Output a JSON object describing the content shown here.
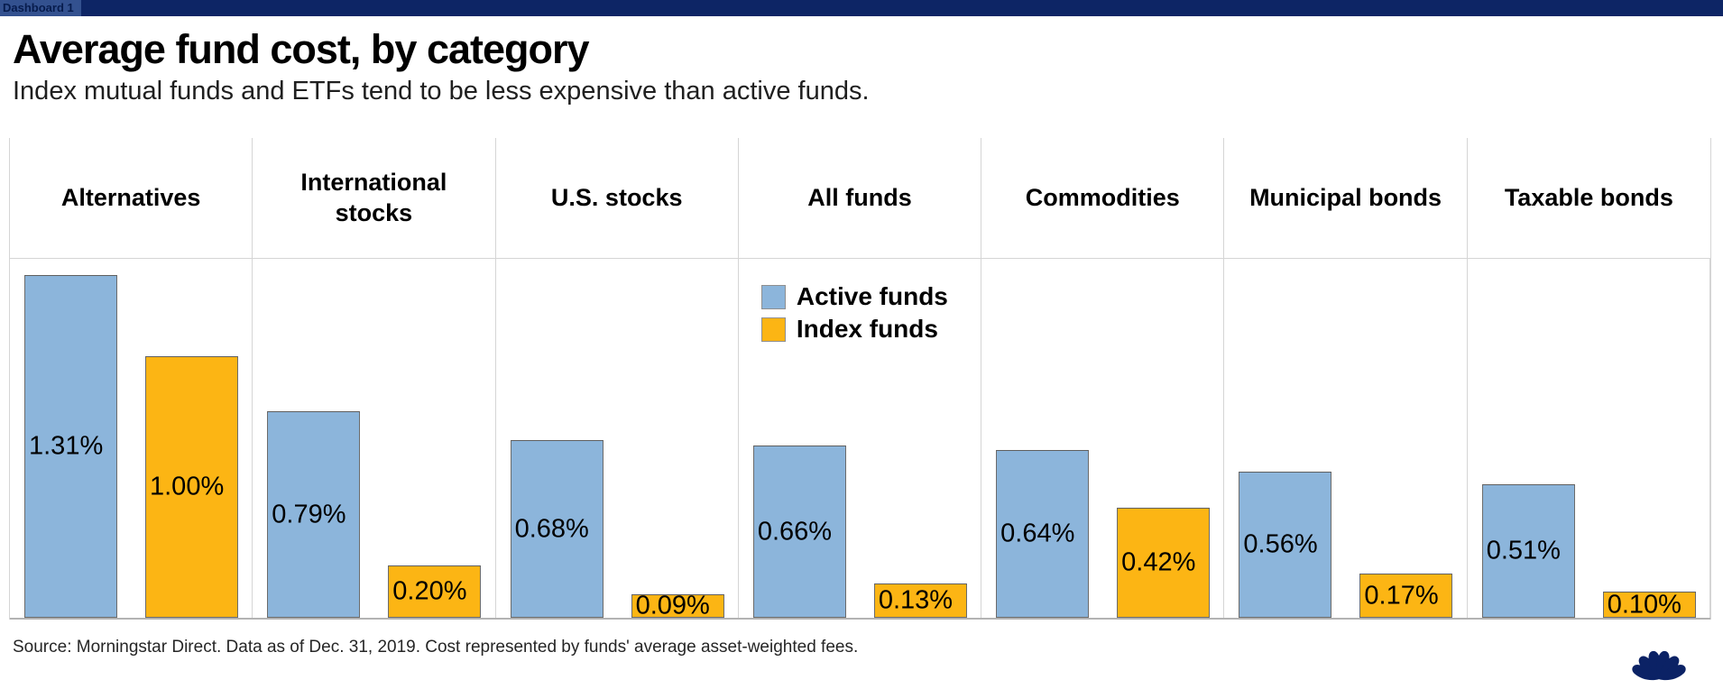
{
  "window": {
    "tab_label": "Dashboard 1"
  },
  "header": {
    "title": "Average fund cost, by category",
    "subtitle": "Index mutual funds and ETFs tend to be less expensive than active funds."
  },
  "chart_data": {
    "type": "bar",
    "title": "Average fund cost, by category",
    "subtitle": "Index mutual funds and ETFs tend to be less expensive than active funds.",
    "categories": [
      "Alternatives",
      "International stocks",
      "U.S. stocks",
      "All funds",
      "Commodities",
      "Municipal bonds",
      "Taxable bonds"
    ],
    "series": [
      {
        "name": "Active funds",
        "color": "#8CB5DB",
        "values": [
          1.31,
          0.79,
          0.68,
          0.66,
          0.64,
          0.56,
          0.51
        ],
        "labels": [
          "1.31%",
          "0.79%",
          "0.68%",
          "0.66%",
          "0.64%",
          "0.56%",
          "0.51%"
        ]
      },
      {
        "name": "Index funds",
        "color": "#FCB514",
        "values": [
          1.0,
          0.2,
          0.09,
          0.13,
          0.42,
          0.17,
          0.1
        ],
        "labels": [
          "1.00%",
          "0.20%",
          "0.09%",
          "0.13%",
          "0.42%",
          "0.17%",
          "0.10%"
        ]
      }
    ],
    "value_unit": "percent",
    "ylim": [
      0,
      1.38
    ],
    "grid": "vertical column dividers only, no y-axis",
    "legend_position": "inside plot, top of All funds column",
    "bar_labels": "inside bars, left-aligned, vertically centered"
  },
  "legend": {
    "items": [
      {
        "label": "Active funds",
        "color": "#8CB5DB"
      },
      {
        "label": "Index funds",
        "color": "#FCB514"
      }
    ]
  },
  "footer": {
    "source": "Source: Morningstar Direct. Data as of Dec. 31, 2019. Cost represented by funds' average asset-weighted fees.",
    "logo": "nbc-peacock"
  },
  "colors": {
    "topbar": "#0D2565",
    "tab_bg": "#33518F",
    "tab_text": "#071C4D",
    "active_fill": "#8CB5DB",
    "index_fill": "#FCB514",
    "divider": "#D5D5D5",
    "baseline": "#B3B3B3",
    "logo_navy": "#0B2265"
  }
}
